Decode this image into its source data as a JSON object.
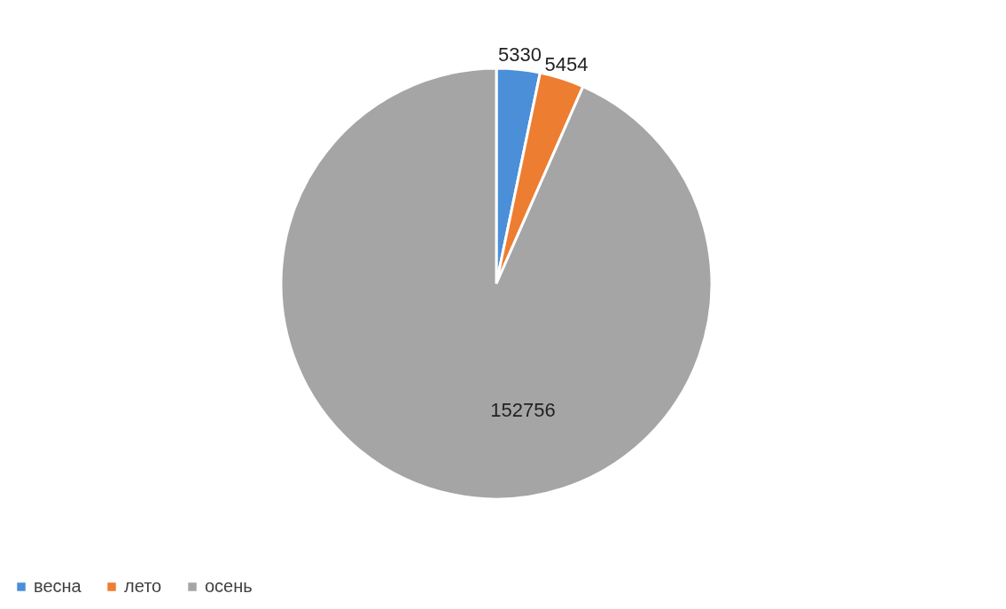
{
  "chart_data": {
    "type": "pie",
    "categories": [
      "весна",
      "лето",
      "осень"
    ],
    "values": [
      5330,
      5454,
      152756
    ],
    "colors": [
      "#4a8fd8",
      "#ed7d31",
      "#a5a5a5"
    ],
    "data_labels": true,
    "legend": "bottom"
  }
}
